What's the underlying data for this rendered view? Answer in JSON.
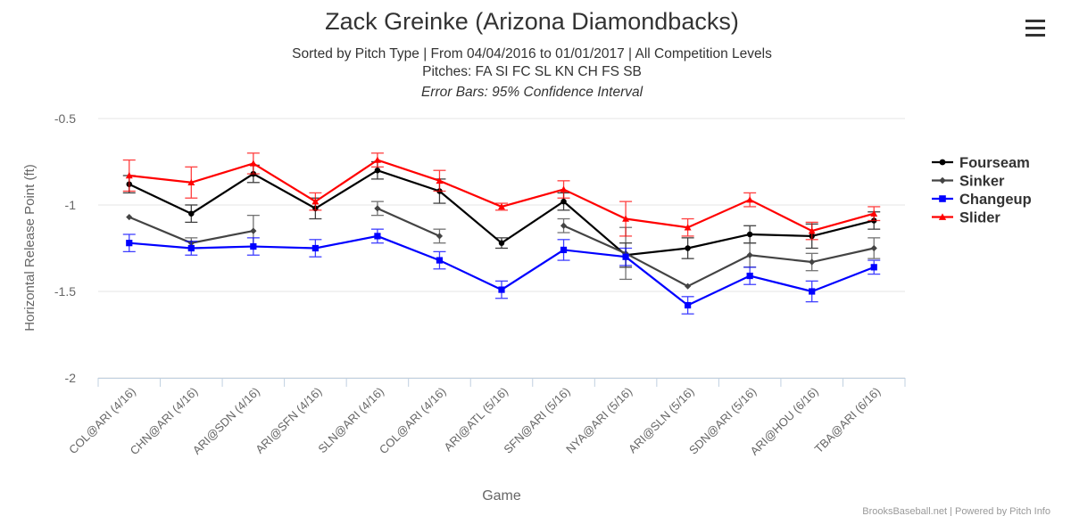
{
  "chart_data": {
    "type": "line",
    "title": "Zack Greinke (Arizona Diamondbacks)",
    "subtitle_lines": [
      "Sorted by Pitch Type | From 04/04/2016 to 01/01/2017 | All Competition Levels",
      "Pitches: FA SI FC SL KN CH FS SB"
    ],
    "subtitle_italic": "Error Bars: 95% Confidence Interval",
    "xlabel": "Game",
    "ylabel": "Horizontal Release Point (ft)",
    "ylim": [
      -2,
      -0.5
    ],
    "y_reversed": true,
    "yticks": [
      -0.5,
      -1,
      -1.5,
      -2
    ],
    "ytick_labels": [
      "-0.5",
      "-1",
      "-1.5",
      "-2"
    ],
    "grid": true,
    "legend_position": "right",
    "categories": [
      "COL@ARI (4/16)",
      "CHN@ARI (4/16)",
      "ARI@SDN (4/16)",
      "ARI@SFN (4/16)",
      "SLN@ARI (4/16)",
      "COL@ARI (4/16)",
      "ARI@ATL (5/16)",
      "SFN@ARI (5/16)",
      "NYA@ARI (5/16)",
      "ARI@SLN (5/16)",
      "SDN@ARI (5/16)",
      "ARI@HOU (6/16)",
      "TBA@ARI (6/16)"
    ],
    "series": [
      {
        "name": "Fourseam",
        "color": "#000000",
        "marker": "circle",
        "values": [
          -0.88,
          -1.05,
          -0.82,
          -1.02,
          -0.8,
          -0.92,
          -1.22,
          -0.98,
          -1.29,
          -1.25,
          -1.17,
          -1.18,
          -1.09
        ],
        "err": [
          0.05,
          0.05,
          0.05,
          0.06,
          0.05,
          0.07,
          0.03,
          0.05,
          0.07,
          0.06,
          0.05,
          0.07,
          0.05
        ]
      },
      {
        "name": "Sinker",
        "color": "#444444",
        "marker": "diamond",
        "values": [
          -1.07,
          -1.22,
          -1.15,
          null,
          -1.02,
          -1.18,
          null,
          -1.12,
          -1.28,
          -1.47,
          -1.29,
          -1.33,
          -1.25
        ],
        "err": [
          0,
          0.03,
          0.09,
          0,
          0.04,
          0.04,
          0,
          0.04,
          0.15,
          0,
          0.07,
          0.05,
          0.06
        ]
      },
      {
        "name": "Changeup",
        "color": "#0000ff",
        "marker": "square",
        "values": [
          -1.22,
          -1.25,
          -1.24,
          -1.25,
          -1.18,
          -1.32,
          -1.49,
          -1.26,
          -1.3,
          -1.58,
          -1.41,
          -1.5,
          -1.36
        ],
        "err": [
          0.05,
          0.04,
          0.05,
          0.05,
          0.04,
          0.05,
          0.05,
          0.06,
          0.05,
          0.05,
          0.05,
          0.06,
          0.04
        ]
      },
      {
        "name": "Slider",
        "color": "#ff0000",
        "marker": "triangle",
        "values": [
          -0.83,
          -0.87,
          -0.76,
          -0.98,
          -0.74,
          -0.86,
          -1.01,
          -0.91,
          -1.08,
          -1.13,
          -0.97,
          -1.15,
          -1.05
        ],
        "err": [
          0.09,
          0.09,
          0.06,
          0.05,
          0.04,
          0.06,
          0.02,
          0.05,
          0.1,
          0.05,
          0.04,
          0.05,
          0.04
        ]
      }
    ],
    "credits": "BrooksBaseball.net | Powered by Pitch Info"
  }
}
